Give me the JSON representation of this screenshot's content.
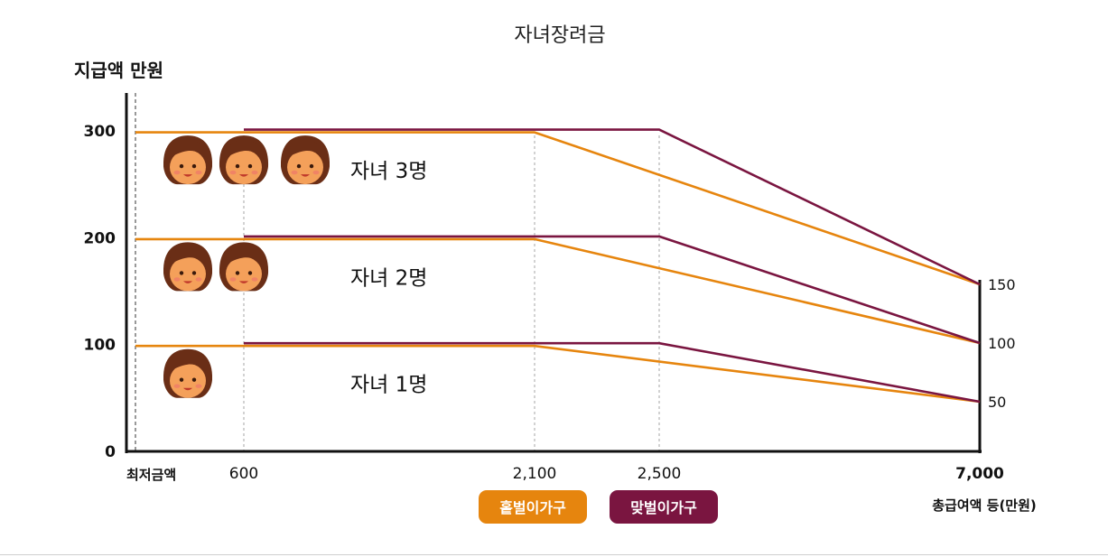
{
  "chart_data": {
    "type": "line",
    "title": "자녀장려금",
    "ylabel": "지급액 만원",
    "xlabel": "총급여액 등(만원)",
    "x_origin_label": "최저금액",
    "x_ticks": [
      "600",
      "2,100",
      "2,500",
      "7,000"
    ],
    "x": [
      0,
      600,
      2100,
      2500,
      7000
    ],
    "xlim": [
      0,
      7000
    ],
    "ylim": [
      0,
      330
    ],
    "y_ticks_left": [
      "0",
      "100",
      "200",
      "300"
    ],
    "y_ticks_right": [
      "50",
      "100",
      "150"
    ],
    "grid": false,
    "legend": "bottom-center",
    "legend_entries": [
      "홑벌이가구",
      "맞벌이가구"
    ],
    "colors": {
      "single_income": "#e6850e",
      "dual_income": "#7a1540"
    },
    "tiers": [
      {
        "label": "자녀 3명",
        "children": 3,
        "series": [
          {
            "name": "홑벌이가구",
            "points": [
              [
                0,
                300
              ],
              [
                2100,
                300
              ],
              [
                7000,
                150
              ]
            ]
          },
          {
            "name": "맞벌이가구",
            "points": [
              [
                600,
                300
              ],
              [
                2500,
                300
              ],
              [
                7000,
                150
              ]
            ]
          }
        ]
      },
      {
        "label": "자녀 2명",
        "children": 2,
        "series": [
          {
            "name": "홑벌이가구",
            "points": [
              [
                0,
                200
              ],
              [
                2100,
                200
              ],
              [
                7000,
                100
              ]
            ]
          },
          {
            "name": "맞벌이가구",
            "points": [
              [
                600,
                200
              ],
              [
                2500,
                200
              ],
              [
                7000,
                100
              ]
            ]
          }
        ]
      },
      {
        "label": "자녀 1명",
        "children": 1,
        "series": [
          {
            "name": "홑벌이가구",
            "points": [
              [
                0,
                100
              ],
              [
                2100,
                100
              ],
              [
                7000,
                50
              ]
            ]
          },
          {
            "name": "맞벌이가구",
            "points": [
              [
                600,
                100
              ],
              [
                2500,
                100
              ],
              [
                7000,
                50
              ]
            ]
          }
        ]
      }
    ]
  }
}
